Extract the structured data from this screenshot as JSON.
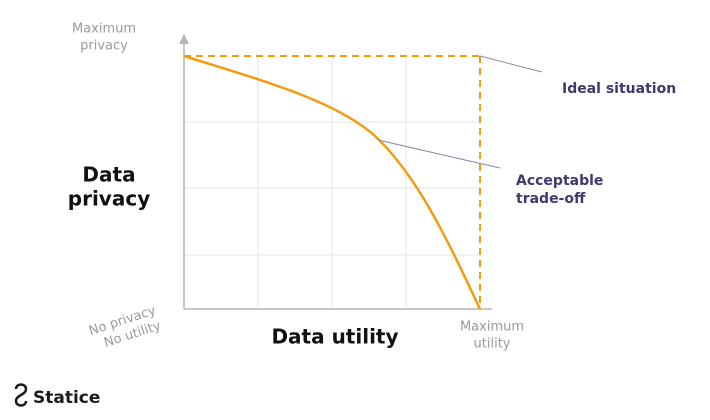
{
  "axes": {
    "y_max_label": [
      "Maximum",
      "privacy"
    ],
    "y_label": [
      "Data",
      "privacy"
    ],
    "origin_label": [
      "No privacy",
      "No utility"
    ],
    "x_label": "Data utility",
    "x_max_label": [
      "Maximum",
      "utility"
    ]
  },
  "annotations": {
    "ideal": "Ideal situation",
    "tradeoff": [
      "Acceptable",
      "trade-off"
    ]
  },
  "brand": {
    "name": "Statice"
  }
}
